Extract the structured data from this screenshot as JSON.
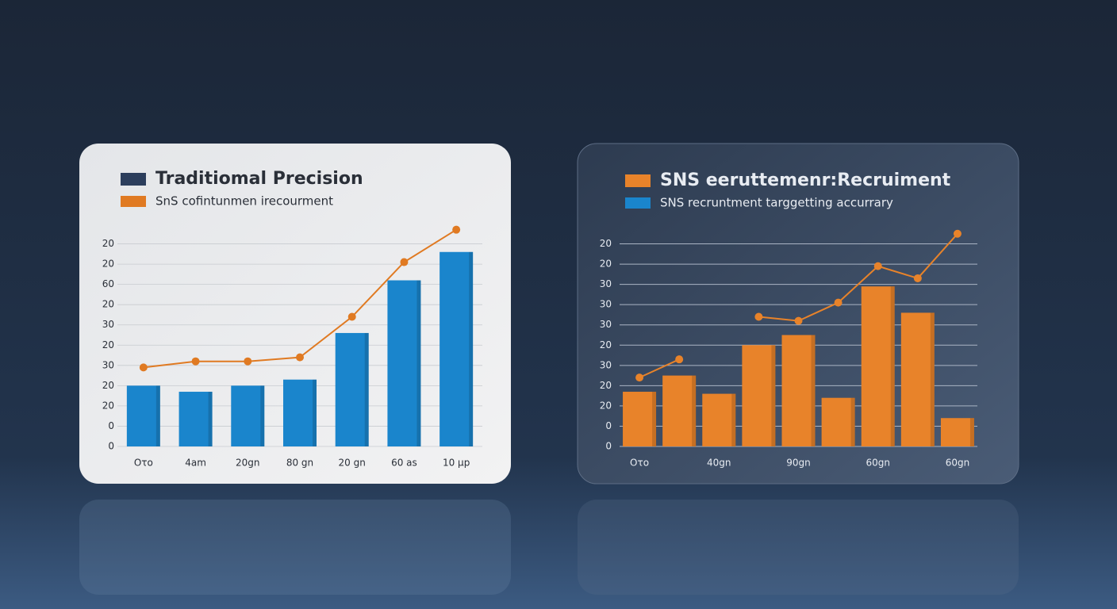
{
  "chart_data": [
    {
      "type": "bar",
      "categories": [
        "Oτo",
        "4am",
        "20gn",
        "80 gn",
        "20 gn",
        "60 as",
        "10 μp"
      ],
      "series": [
        {
          "name": "Traditiomal Precision",
          "type": "bar",
          "color": "#1a85cc",
          "legend_color": "#2c3e5c",
          "values": [
            3.0,
            2.7,
            3.0,
            3.3,
            5.6,
            8.2,
            9.6
          ]
        },
        {
          "name": "SnS cofintunmen irecourment",
          "type": "line",
          "color": "#e07a22",
          "legend_color": "#e07a22",
          "values": [
            3.9,
            4.2,
            4.2,
            4.4,
            6.4,
            9.1,
            10.7
          ]
        }
      ],
      "ylim": [
        0,
        11
      ],
      "yticks": [
        {
          "value": 0,
          "label": "0"
        },
        {
          "value": 1,
          "label": "0"
        },
        {
          "value": 2,
          "label": "20"
        },
        {
          "value": 3,
          "label": "20"
        },
        {
          "value": 4,
          "label": "30"
        },
        {
          "value": 5,
          "label": "20"
        },
        {
          "value": 6,
          "label": "30"
        },
        {
          "value": 7,
          "label": "20"
        },
        {
          "value": 8,
          "label": "60"
        },
        {
          "value": 9,
          "label": "20"
        },
        {
          "value": 10,
          "label": "20"
        }
      ],
      "grid": true,
      "theme": "light"
    },
    {
      "type": "bar",
      "categories": [
        "Oτo",
        null,
        "40gn",
        null,
        "90gn",
        null,
        "60gn",
        null,
        "60gn"
      ],
      "series": [
        {
          "name": "SNS eeruttemenr:Recruiment",
          "type": "bar",
          "color": "#e8832a",
          "legend_color": "#e8832a",
          "values": [
            2.7,
            3.5,
            2.6,
            5.0,
            5.5,
            2.4,
            7.9,
            6.6,
            1.4
          ]
        },
        {
          "name": "SNS recruntment targgetting accurrary",
          "type": "line",
          "color": "#e8832a",
          "legend_color": "#1a85cc",
          "values": [
            3.4,
            4.3,
            null,
            6.4,
            6.2,
            7.1,
            8.9,
            8.3,
            10.5
          ]
        }
      ],
      "ylim": [
        0,
        11
      ],
      "yticks": [
        {
          "value": 0,
          "label": "0"
        },
        {
          "value": 1,
          "label": "0"
        },
        {
          "value": 2,
          "label": "20"
        },
        {
          "value": 3,
          "label": "20"
        },
        {
          "value": 4,
          "label": "30"
        },
        {
          "value": 5,
          "label": "20"
        },
        {
          "value": 6,
          "label": "30"
        },
        {
          "value": 7,
          "label": "30"
        },
        {
          "value": 8,
          "label": "30"
        },
        {
          "value": 9,
          "label": "20"
        },
        {
          "value": 10,
          "label": "20"
        }
      ],
      "grid": true,
      "theme": "dark"
    }
  ]
}
